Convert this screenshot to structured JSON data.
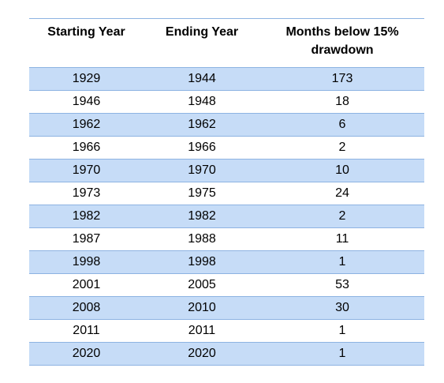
{
  "table": {
    "headers": {
      "start": "Starting Year",
      "end": "Ending Year",
      "months_line1": "Months below 15%",
      "months_line2": "drawdown"
    },
    "rows": [
      {
        "start": "1929",
        "end": "1944",
        "months": "173"
      },
      {
        "start": "1946",
        "end": "1948",
        "months": "18"
      },
      {
        "start": "1962",
        "end": "1962",
        "months": "6"
      },
      {
        "start": "1966",
        "end": "1966",
        "months": "2"
      },
      {
        "start": "1970",
        "end": "1970",
        "months": "10"
      },
      {
        "start": "1973",
        "end": "1975",
        "months": "24"
      },
      {
        "start": "1982",
        "end": "1982",
        "months": "2"
      },
      {
        "start": "1987",
        "end": "1988",
        "months": "11"
      },
      {
        "start": "1998",
        "end": "1998",
        "months": "1"
      },
      {
        "start": "2001",
        "end": "2005",
        "months": "53"
      },
      {
        "start": "2008",
        "end": "2010",
        "months": "30"
      },
      {
        "start": "2011",
        "end": "2011",
        "months": "1"
      },
      {
        "start": "2020",
        "end": "2020",
        "months": "1"
      }
    ],
    "colors": {
      "band": "#c6dcf7",
      "rule": "#8db3e2"
    }
  }
}
